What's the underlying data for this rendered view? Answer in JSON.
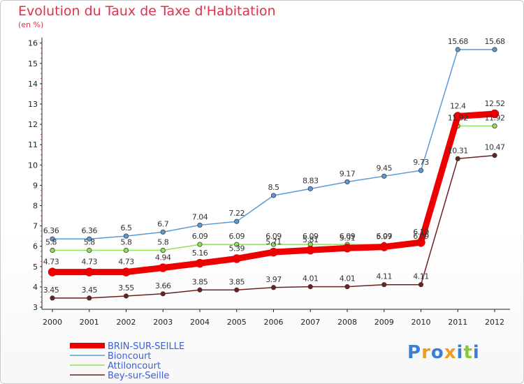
{
  "title": "Evolution du Taux de Taxe d'Habitation",
  "subtitle": "(en %)",
  "logo": {
    "text": "Proxiti",
    "letters": [
      "P",
      "r",
      "o",
      "x",
      "i",
      "t",
      "i"
    ],
    "colors": [
      "#3a7fd1",
      "#f29b1a",
      "#3a7fd1",
      "#f29b1a",
      "#3a7fd1",
      "#8cc63f",
      "#3a7fd1"
    ]
  },
  "chart_data": {
    "type": "line",
    "categories": [
      "2000",
      "2001",
      "2002",
      "2003",
      "2004",
      "2005",
      "2006",
      "2007",
      "2008",
      "2009",
      "2010",
      "2011",
      "2012"
    ],
    "ylim": [
      3,
      16
    ],
    "yticks": [
      "3",
      "4",
      "5",
      "6",
      "7",
      "8",
      "9",
      "10",
      "11",
      "12",
      "13",
      "14",
      "15",
      "16"
    ],
    "grid": false,
    "legend_position": "bottom-left",
    "series": [
      {
        "name": "Bey-sur-Seille",
        "color": "#6b1f1f",
        "values": [
          3.45,
          3.45,
          3.55,
          3.66,
          3.85,
          3.85,
          3.97,
          4.01,
          4.01,
          4.11,
          4.11,
          10.31,
          10.47
        ],
        "labels": [
          "3.45",
          "3.45",
          "3.55",
          "3.66",
          "3.85",
          "3.85",
          "3.97",
          "4.01",
          "4.01",
          "4.11",
          "4.11",
          "10.31",
          "10.47"
        ]
      },
      {
        "name": "Attiloncourt",
        "color": "#8fe05a",
        "values": [
          5.8,
          5.8,
          5.8,
          5.8,
          6.09,
          6.09,
          6.09,
          6.09,
          6.09,
          6.09,
          6.09,
          11.92,
          11.92
        ],
        "labels": [
          "5.8",
          "5.8",
          "5.8",
          "5.8",
          "6.09",
          "6.09",
          "6.09",
          "6.09",
          "6.09",
          "6.09",
          "6.09",
          "11.92",
          "11.92"
        ]
      },
      {
        "name": "Bioncourt",
        "color": "#5a9ad5",
        "values": [
          6.36,
          6.36,
          6.5,
          6.7,
          7.04,
          7.22,
          8.5,
          8.83,
          9.17,
          9.45,
          9.73,
          15.68,
          15.68
        ],
        "labels": [
          "6.36",
          "6.36",
          "6.5",
          "6.7",
          "7.04",
          "7.22",
          "8.5",
          "8.83",
          "9.17",
          "9.45",
          "9.73",
          "15.68",
          "15.68"
        ]
      },
      {
        "name": "BRIN-SUR-SEILLE",
        "color": "#ee0000",
        "values": [
          4.73,
          4.73,
          4.73,
          4.94,
          5.16,
          5.39,
          5.71,
          5.81,
          5.91,
          5.97,
          6.19,
          12.4,
          12.52
        ],
        "labels": [
          "4.73",
          "4.73",
          "4.73",
          "4.94",
          "5.16",
          "5.39",
          "5.71",
          "5.81",
          "5.91",
          "5.97",
          "6.19",
          "12.4",
          "12.52"
        ]
      }
    ],
    "legend": [
      {
        "name": "BRIN-SUR-SEILLE",
        "color": "#ee0000",
        "text_color": "#3b5fd8"
      },
      {
        "name": "Bioncourt",
        "color": "#5a9ad5",
        "text_color": "#3b5fd8"
      },
      {
        "name": "Attiloncourt",
        "color": "#8fe05a",
        "text_color": "#3b5fd8"
      },
      {
        "name": "Bey-sur-Seille",
        "color": "#6b1f1f",
        "text_color": "#3b5fd8"
      }
    ]
  }
}
